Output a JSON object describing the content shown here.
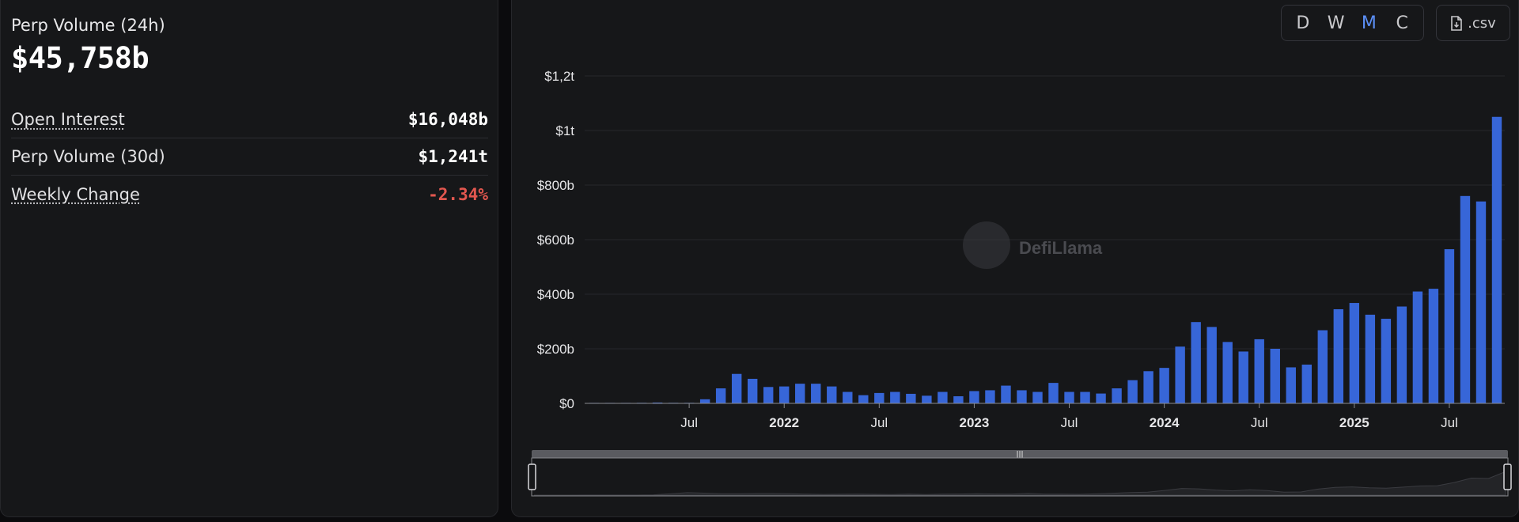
{
  "stats": {
    "perp_volume_24h_label": "Perp Volume (24h)",
    "perp_volume_24h_value": "$45,758b",
    "rows": [
      {
        "label": "Open Interest",
        "value": "$16,048b"
      },
      {
        "label": "Perp Volume (30d)",
        "value": "$1,241t"
      },
      {
        "label": "Weekly Change",
        "value": "-2.34%"
      }
    ]
  },
  "toolbar": {
    "intervals": [
      "D",
      "W",
      "M",
      "C"
    ],
    "active_interval": "M",
    "csv_label": ".csv"
  },
  "watermark": "DefiLlama",
  "colors": {
    "bar": "#3766d8",
    "accent": "#5b8ff7",
    "negative": "#e2574f",
    "panel": "#161719"
  },
  "chart_data": {
    "type": "bar",
    "title": "",
    "xlabel": "",
    "ylabel": "",
    "ylim": [
      0,
      1200
    ],
    "y_ticks": [
      {
        "value": 0,
        "label": "$0"
      },
      {
        "value": 200,
        "label": "$200b"
      },
      {
        "value": 400,
        "label": "$400b"
      },
      {
        "value": 600,
        "label": "$600b"
      },
      {
        "value": 800,
        "label": "$800b"
      },
      {
        "value": 1000,
        "label": "$1t"
      },
      {
        "value": 1200,
        "label": "$1,2t"
      }
    ],
    "x_ticks": [
      {
        "label": "Jul",
        "index": 6,
        "bold": false
      },
      {
        "label": "2022",
        "index": 12,
        "bold": true
      },
      {
        "label": "Jul",
        "index": 18,
        "bold": false
      },
      {
        "label": "2023",
        "index": 24,
        "bold": true
      },
      {
        "label": "Jul",
        "index": 30,
        "bold": false
      },
      {
        "label": "2024",
        "index": 36,
        "bold": true
      },
      {
        "label": "Jul",
        "index": 42,
        "bold": false
      },
      {
        "label": "2025",
        "index": 48,
        "bold": true
      },
      {
        "label": "Jul",
        "index": 54,
        "bold": false
      }
    ],
    "categories": [
      "2021-01",
      "2021-02",
      "2021-03",
      "2021-04",
      "2021-05",
      "2021-06",
      "2021-07",
      "2021-08",
      "2021-09",
      "2021-10",
      "2021-11",
      "2021-12",
      "2022-01",
      "2022-02",
      "2022-03",
      "2022-04",
      "2022-05",
      "2022-06",
      "2022-07",
      "2022-08",
      "2022-09",
      "2022-10",
      "2022-11",
      "2022-12",
      "2023-01",
      "2023-02",
      "2023-03",
      "2023-04",
      "2023-05",
      "2023-06",
      "2023-07",
      "2023-08",
      "2023-09",
      "2023-10",
      "2023-11",
      "2023-12",
      "2024-01",
      "2024-02",
      "2024-03",
      "2024-04",
      "2024-05",
      "2024-06",
      "2024-07",
      "2024-08",
      "2024-09",
      "2024-10",
      "2024-11",
      "2024-12",
      "2025-01",
      "2025-02",
      "2025-03",
      "2025-04",
      "2025-05",
      "2025-06",
      "2025-07",
      "2025-08",
      "2025-09",
      "2025-10"
    ],
    "series": [
      {
        "name": "",
        "values": [
          0.5,
          1,
          1.5,
          2,
          3,
          2,
          2,
          15,
          55,
          108,
          90,
          60,
          62,
          72,
          72,
          62,
          42,
          30,
          38,
          42,
          35,
          28,
          42,
          26,
          45,
          48,
          65,
          48,
          42,
          75,
          42,
          42,
          36,
          55,
          85,
          118,
          130,
          208,
          298,
          280,
          225,
          190,
          235,
          200,
          132,
          142,
          268,
          345,
          368,
          325,
          310,
          355,
          410,
          420,
          565,
          760,
          740,
          1050
        ]
      }
    ],
    "grid": true,
    "legend": "none"
  }
}
